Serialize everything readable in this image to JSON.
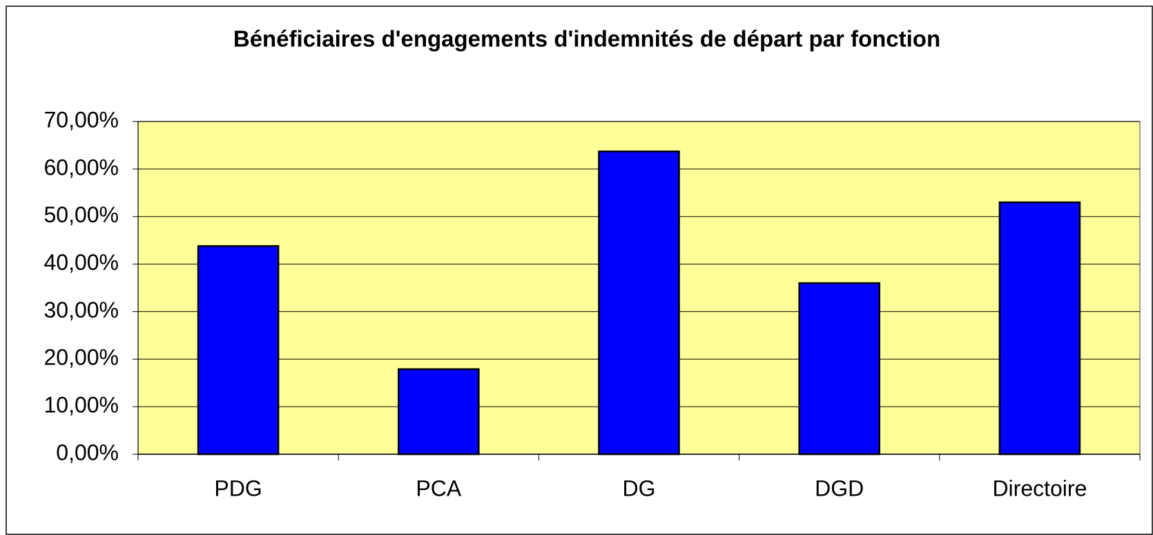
{
  "chart_data": {
    "type": "bar",
    "title": "Bénéficiaires d'engagements d'indemnités de départ par fonction",
    "categories": [
      "PDG",
      "PCA",
      "DG",
      "DGD",
      "Directoire"
    ],
    "values": [
      43.8,
      17.9,
      63.7,
      36,
      53
    ],
    "color": "#0000ff",
    "plot_background": "#ffff99",
    "ylim": [
      0,
      70
    ],
    "yticks": [
      {
        "value": 0,
        "label": "0,00%"
      },
      {
        "value": 10,
        "label": "10,00%"
      },
      {
        "value": 20,
        "label": "20,00%"
      },
      {
        "value": 30,
        "label": "30,00%"
      },
      {
        "value": 40,
        "label": "40,00%"
      },
      {
        "value": 50,
        "label": "50,00%"
      },
      {
        "value": 60,
        "label": "60,00%"
      },
      {
        "value": 70,
        "label": "70,00%"
      }
    ],
    "grid": true
  }
}
